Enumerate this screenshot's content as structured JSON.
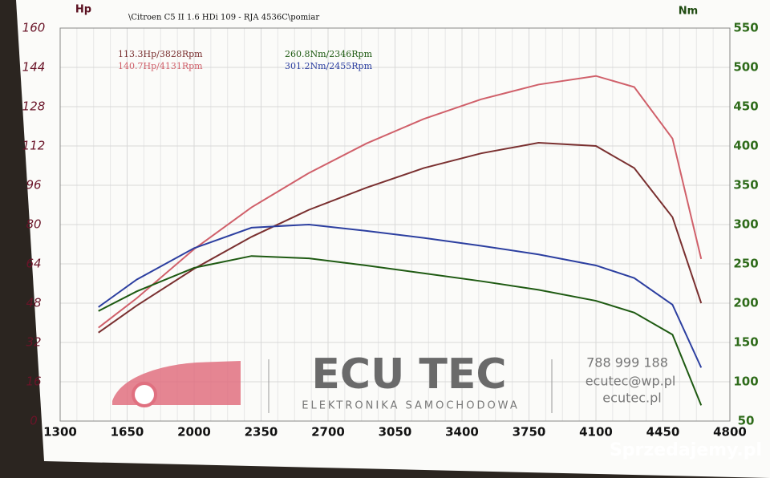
{
  "chart_data": {
    "type": "line",
    "title": "\\Citroen C5 II 1.6 HDi 109 - RJA 4536C\\pomiar",
    "y_label": "Hp",
    "y2_label": "Nm",
    "x": [
      1500,
      1700,
      2000,
      2300,
      2600,
      2900,
      3200,
      3500,
      3800,
      4100,
      4300,
      4500,
      4650
    ],
    "series": [
      {
        "name": "140.7Hp/4131Rpm",
        "color": "#d0606a",
        "values": [
          38,
          50,
          70,
          87,
          101,
          113,
          123,
          131,
          137,
          140.5,
          136,
          115,
          66
        ]
      },
      {
        "name": "113.3Hp/3828Rpm",
        "color": "#7a3030",
        "values": [
          36,
          47,
          62,
          75,
          86,
          95,
          103,
          109,
          113.3,
          112,
          103,
          83,
          48
        ]
      },
      {
        "name": "301.2Nm/2455Rpm",
        "color": "#2c3fa0",
        "axis": "y2",
        "values": [
          195,
          230,
          270,
          296,
          300,
          292,
          283,
          273,
          262,
          248,
          232,
          198,
          118
        ]
      },
      {
        "name": "260.8Nm/2346Rpm",
        "color": "#1e5a12",
        "axis": "y2",
        "values": [
          190,
          215,
          245,
          260,
          257,
          248,
          238,
          228,
          217,
          203,
          188,
          160,
          70
        ]
      }
    ],
    "xlim": [
      1300,
      4800
    ],
    "xticks": [
      1300,
      1650,
      2000,
      2350,
      2700,
      3050,
      3400,
      3750,
      4100,
      4450,
      4800
    ],
    "ylim": [
      0,
      160
    ],
    "yticks": [
      0,
      16,
      32,
      48,
      64,
      80,
      96,
      112,
      128,
      144,
      160
    ],
    "y2lim": [
      50,
      550
    ],
    "y2ticks": [
      50,
      100,
      150,
      200,
      250,
      300,
      350,
      400,
      450,
      500,
      550
    ],
    "grid": true
  },
  "branding": {
    "name": "ECU TEC",
    "tagline": "ELEKTRONIKA SAMOCHODOWA",
    "phone": "788 999 188",
    "email": "ecutec@wp.pl",
    "site": "ecutec.pl",
    "watermark": "Sprzedajemy.pl"
  }
}
